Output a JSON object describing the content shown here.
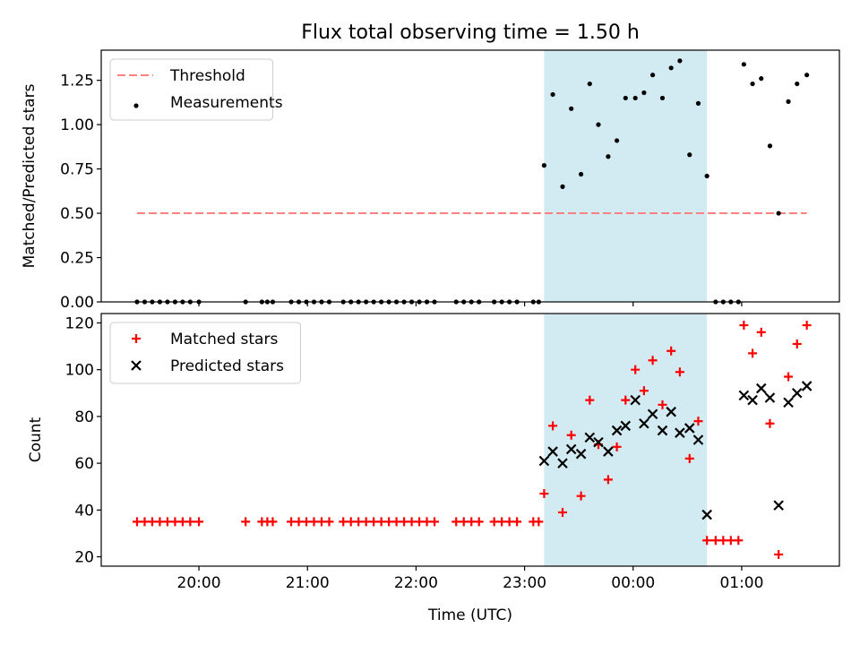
{
  "title": "Flux total observing time = 1.50 h",
  "xlabel": "Time (UTC)",
  "chart_data": [
    {
      "type": "scatter",
      "ylabel": "Matched/Predicted stars",
      "ylim": [
        0,
        1.42
      ],
      "yticks": [
        0.0,
        0.25,
        0.5,
        0.75,
        1.0,
        1.25
      ],
      "ytick_labels": [
        "0.00",
        "0.25",
        "0.50",
        "0.75",
        "1.00",
        "1.25"
      ],
      "xlim_hours": [
        19.1,
        25.9
      ],
      "xticks_hours": [
        20,
        21,
        22,
        23,
        24,
        25
      ],
      "xtick_labels": [
        "20:00",
        "21:00",
        "22:00",
        "23:00",
        "00:00",
        "01:00"
      ],
      "shaded_interval_hours": [
        23.18,
        24.68
      ],
      "shade_color": "#add8e6",
      "legend_position": "upper left",
      "series": [
        {
          "name": "Threshold",
          "style": "dashed-line",
          "color": "#ff8080",
          "x_hours": [
            19.43,
            25.6
          ],
          "y": [
            0.5,
            0.5
          ]
        },
        {
          "name": "Measurements",
          "style": "dot",
          "color": "#000000",
          "x_hours": [
            19.43,
            19.5,
            19.57,
            19.64,
            19.71,
            19.78,
            19.85,
            19.92,
            20.0,
            20.43,
            20.58,
            20.63,
            20.68,
            20.85,
            20.92,
            20.99,
            21.06,
            21.13,
            21.2,
            21.33,
            21.4,
            21.47,
            21.54,
            21.61,
            21.68,
            21.75,
            21.82,
            21.89,
            21.96,
            22.03,
            22.1,
            22.17,
            22.37,
            22.44,
            22.51,
            22.58,
            22.72,
            22.79,
            22.86,
            22.93,
            23.08,
            23.13,
            23.18,
            23.26,
            23.35,
            23.43,
            23.52,
            23.6,
            23.68,
            23.77,
            23.85,
            23.93,
            24.02,
            24.1,
            24.18,
            24.27,
            24.35,
            24.43,
            24.52,
            24.6,
            24.68,
            24.76,
            24.83,
            24.9,
            24.97,
            25.02,
            25.1,
            25.18,
            25.26,
            25.34,
            25.43,
            25.51,
            25.6
          ],
          "y": [
            0,
            0,
            0,
            0,
            0,
            0,
            0,
            0,
            0,
            0,
            0,
            0,
            0,
            0,
            0,
            0,
            0,
            0,
            0,
            0,
            0,
            0,
            0,
            0,
            0,
            0,
            0,
            0,
            0,
            0,
            0,
            0,
            0,
            0,
            0,
            0,
            0,
            0,
            0,
            0,
            0,
            0,
            0.77,
            1.17,
            0.65,
            1.09,
            0.72,
            1.23,
            1.0,
            0.82,
            0.91,
            1.15,
            1.15,
            1.18,
            1.28,
            1.15,
            1.32,
            1.36,
            0.83,
            1.12,
            0.71,
            0,
            0,
            0,
            0,
            1.34,
            1.23,
            1.26,
            0.88,
            0.5,
            1.13,
            1.23,
            1.28
          ]
        }
      ]
    },
    {
      "type": "scatter",
      "ylabel": "Count",
      "ylim": [
        16,
        124
      ],
      "yticks": [
        20,
        40,
        60,
        80,
        100,
        120
      ],
      "ytick_labels": [
        "20",
        "40",
        "60",
        "80",
        "100",
        "120"
      ],
      "xlim_hours": [
        19.1,
        25.9
      ],
      "xticks_hours": [
        20,
        21,
        22,
        23,
        24,
        25
      ],
      "xtick_labels": [
        "20:00",
        "21:00",
        "22:00",
        "23:00",
        "00:00",
        "01:00"
      ],
      "shaded_interval_hours": [
        23.18,
        24.68
      ],
      "shade_color": "#add8e6",
      "legend_position": "upper left",
      "series": [
        {
          "name": "Matched stars",
          "style": "plus",
          "color": "#ff0000",
          "x_hours": [
            19.43,
            19.5,
            19.57,
            19.64,
            19.71,
            19.78,
            19.85,
            19.92,
            20.0,
            20.43,
            20.58,
            20.63,
            20.68,
            20.85,
            20.92,
            20.99,
            21.06,
            21.13,
            21.2,
            21.33,
            21.4,
            21.47,
            21.54,
            21.61,
            21.68,
            21.75,
            21.82,
            21.89,
            21.96,
            22.03,
            22.1,
            22.17,
            22.37,
            22.44,
            22.51,
            22.58,
            22.72,
            22.79,
            22.86,
            22.93,
            23.08,
            23.13,
            23.18,
            23.26,
            23.35,
            23.43,
            23.52,
            23.6,
            23.68,
            23.77,
            23.85,
            23.93,
            24.02,
            24.1,
            24.18,
            24.27,
            24.35,
            24.43,
            24.52,
            24.6,
            24.68,
            24.76,
            24.83,
            24.9,
            24.97,
            25.02,
            25.1,
            25.18,
            25.26,
            25.34,
            25.43,
            25.51,
            25.6
          ],
          "y": [
            35,
            35,
            35,
            35,
            35,
            35,
            35,
            35,
            35,
            35,
            35,
            35,
            35,
            35,
            35,
            35,
            35,
            35,
            35,
            35,
            35,
            35,
            35,
            35,
            35,
            35,
            35,
            35,
            35,
            35,
            35,
            35,
            35,
            35,
            35,
            35,
            35,
            35,
            35,
            35,
            35,
            35,
            47,
            76,
            39,
            72,
            46,
            87,
            68,
            53,
            67,
            87,
            100,
            91,
            104,
            85,
            108,
            99,
            62,
            78,
            27,
            27,
            27,
            27,
            27,
            119,
            107,
            116,
            77,
            21,
            97,
            111,
            119
          ]
        },
        {
          "name": "Predicted stars",
          "style": "x",
          "color": "#000000",
          "x_hours": [
            23.18,
            23.26,
            23.35,
            23.43,
            23.52,
            23.6,
            23.68,
            23.77,
            23.85,
            23.93,
            24.02,
            24.1,
            24.18,
            24.27,
            24.35,
            24.43,
            24.52,
            24.6,
            24.68,
            25.02,
            25.1,
            25.18,
            25.26,
            25.34,
            25.43,
            25.51,
            25.6
          ],
          "y": [
            61,
            65,
            60,
            66,
            64,
            71,
            69,
            65,
            74,
            76,
            87,
            77,
            81,
            74,
            82,
            73,
            75,
            70,
            38,
            89,
            87,
            92,
            88,
            42,
            86,
            90,
            93
          ]
        }
      ]
    }
  ]
}
